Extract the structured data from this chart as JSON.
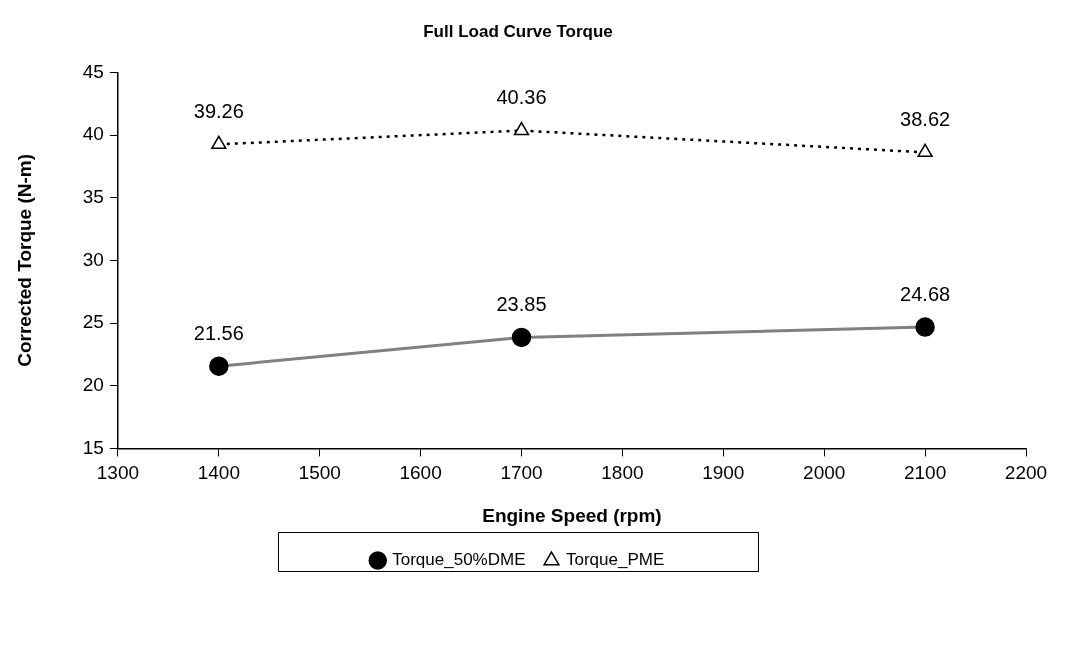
{
  "chart_data": {
    "type": "line",
    "title": "Full Load Curve Torque",
    "xlabel": "Engine Speed (rpm)",
    "ylabel": "Corrected Torque (N-m)",
    "x": [
      1400,
      1700,
      2100
    ],
    "series": [
      {
        "name": "Torque_50%DME",
        "color": "#808080",
        "values": [
          21.56,
          23.85,
          24.68
        ],
        "marker": "circle",
        "line_style": "solid"
      },
      {
        "name": "Torque_PME",
        "color": "#000000",
        "values": [
          39.26,
          40.36,
          38.62
        ],
        "marker": "triangle",
        "line_style": "dotted"
      }
    ],
    "xlim": [
      1300,
      2200
    ],
    "xticks": [
      1300,
      1400,
      1500,
      1600,
      1700,
      1800,
      1900,
      2000,
      2100,
      2200
    ],
    "ylim": [
      15,
      45
    ],
    "yticks": [
      15,
      20,
      25,
      30,
      35,
      40,
      45
    ],
    "data_labels": true,
    "grid": false,
    "legend": "bottom"
  }
}
